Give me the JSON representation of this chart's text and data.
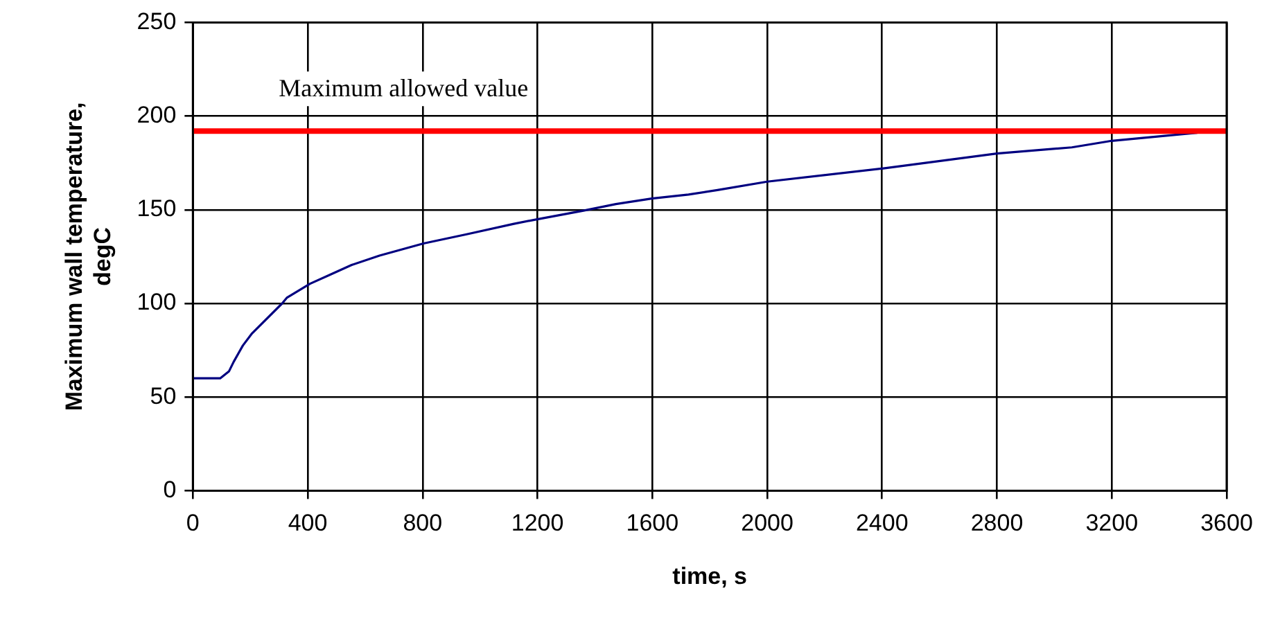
{
  "chart_data": {
    "type": "line",
    "xlabel": "time, s",
    "ylabel": "Maximum wall temperature, degC",
    "x": [
      0,
      95,
      126,
      142,
      174,
      206,
      311,
      327,
      408,
      473,
      553,
      650,
      803,
      956,
      1118,
      1202,
      1360,
      1473,
      1598,
      1726,
      1827,
      2000,
      2400,
      2800,
      3061,
      3200,
      3498
    ],
    "series": [
      {
        "color": "#000080",
        "values": [
          60,
          60,
          63.8,
          68.8,
          77.5,
          84,
          100,
          103,
          110.5,
          115,
          120.5,
          125.5,
          132,
          137,
          142.5,
          145,
          149.5,
          153,
          156,
          158.1,
          160.5,
          165,
          172,
          180,
          183.3,
          186.8,
          191.1
        ]
      }
    ],
    "xlim": [
      0,
      3600
    ],
    "xticks": [
      0,
      400,
      800,
      1200,
      1600,
      2000,
      2400,
      2800,
      3200,
      3600
    ],
    "ylim": [
      0,
      250
    ],
    "yticks": [
      0,
      50,
      100,
      150,
      200,
      250
    ],
    "ref_lines": [
      {
        "axis": "y",
        "value": 192,
        "label": "Maximum allowed value",
        "color": "#ff0000"
      }
    ],
    "grid": true,
    "legend": false,
    "marker": "none",
    "line_style": "solid"
  }
}
